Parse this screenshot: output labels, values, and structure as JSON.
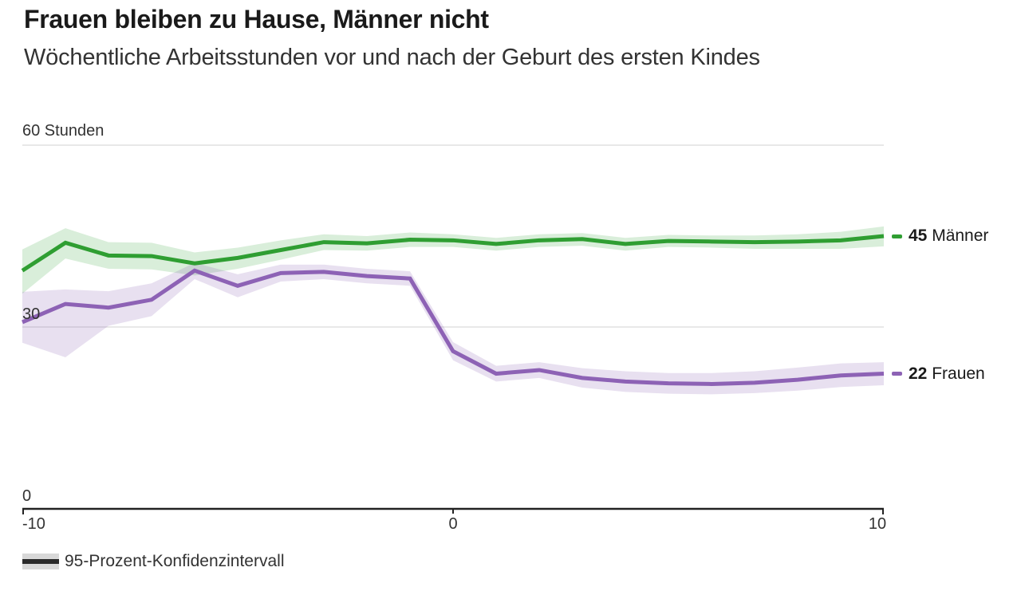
{
  "header": {
    "title": "Frauen bleiben zu Hause, Männer nicht",
    "subtitle": "Wöchentliche Arbeitsstunden vor und nach der Geburt des ersten Kindes"
  },
  "chart_data": {
    "type": "line",
    "title": "Frauen bleiben zu Hause, Männer nicht",
    "subtitle": "Wöchentliche Arbeitsstunden vor und nach der Geburt des ersten Kindes",
    "x": [
      -10,
      -9,
      -8,
      -7,
      -6,
      -5,
      -4,
      -3,
      -2,
      -1,
      0,
      1,
      2,
      3,
      4,
      5,
      6,
      7,
      8,
      9,
      10
    ],
    "xlim": [
      -10,
      10
    ],
    "ylim": [
      0,
      60
    ],
    "grid": "horizontal",
    "series": [
      {
        "name": "Männer",
        "end_value": "45",
        "color": "#2f9e32",
        "band_color": "rgba(47,158,50,0.18)",
        "values": [
          39.3,
          43.9,
          41.8,
          41.7,
          40.5,
          41.4,
          42.7,
          44.0,
          43.8,
          44.4,
          44.3,
          43.7,
          44.3,
          44.5,
          43.7,
          44.2,
          44.1,
          44.0,
          44.1,
          44.3,
          45.0
        ],
        "upper": [
          42.8,
          46.3,
          44.0,
          43.9,
          42.3,
          43.1,
          44.3,
          45.3,
          45.0,
          45.6,
          45.3,
          44.7,
          45.3,
          45.5,
          44.7,
          45.2,
          45.1,
          45.1,
          45.3,
          45.7,
          46.6
        ],
        "lower": [
          35.5,
          41.3,
          39.6,
          39.5,
          38.5,
          39.6,
          41.1,
          42.7,
          42.6,
          43.2,
          43.2,
          42.6,
          43.2,
          43.4,
          42.6,
          43.2,
          43.1,
          42.9,
          42.9,
          42.9,
          43.3
        ]
      },
      {
        "name": "Frauen",
        "end_value": "22",
        "color": "#8d62b5",
        "band_color": "rgba(141,98,181,0.20)",
        "values": [
          30.8,
          33.8,
          33.2,
          34.5,
          39.3,
          36.8,
          38.9,
          39.1,
          38.4,
          38.0,
          26.0,
          22.3,
          22.9,
          21.6,
          21.0,
          20.7,
          20.6,
          20.8,
          21.3,
          22.0,
          22.3
        ],
        "upper": [
          35.8,
          36.2,
          35.9,
          37.2,
          40.6,
          38.7,
          40.3,
          40.3,
          39.6,
          39.2,
          27.5,
          23.6,
          24.2,
          23.2,
          22.7,
          22.4,
          22.4,
          22.7,
          23.3,
          24.0,
          24.2
        ],
        "lower": [
          27.4,
          25.0,
          30.2,
          31.8,
          37.9,
          34.9,
          37.5,
          37.9,
          37.2,
          36.8,
          24.5,
          21.0,
          21.6,
          20.0,
          19.3,
          19.0,
          18.9,
          19.1,
          19.5,
          20.1,
          20.4
        ]
      }
    ],
    "y_axis": {
      "labels": [
        {
          "value": 60,
          "label": "60 Stunden"
        },
        {
          "value": 30,
          "label": "30"
        },
        {
          "value": 0,
          "label": "0"
        }
      ]
    },
    "x_axis": {
      "ticks": [
        {
          "value": -10,
          "label": "-10"
        },
        {
          "value": 0,
          "label": "0"
        },
        {
          "value": 10,
          "label": "10"
        }
      ]
    },
    "legend": {
      "label": "95-Prozent-Konfidenzintervall",
      "band_color": "#d8d8d8",
      "line_color": "#2a2a2a"
    },
    "colors": {
      "grid": "#e0e0e0",
      "axis": "#222222",
      "text": "#333333"
    }
  }
}
